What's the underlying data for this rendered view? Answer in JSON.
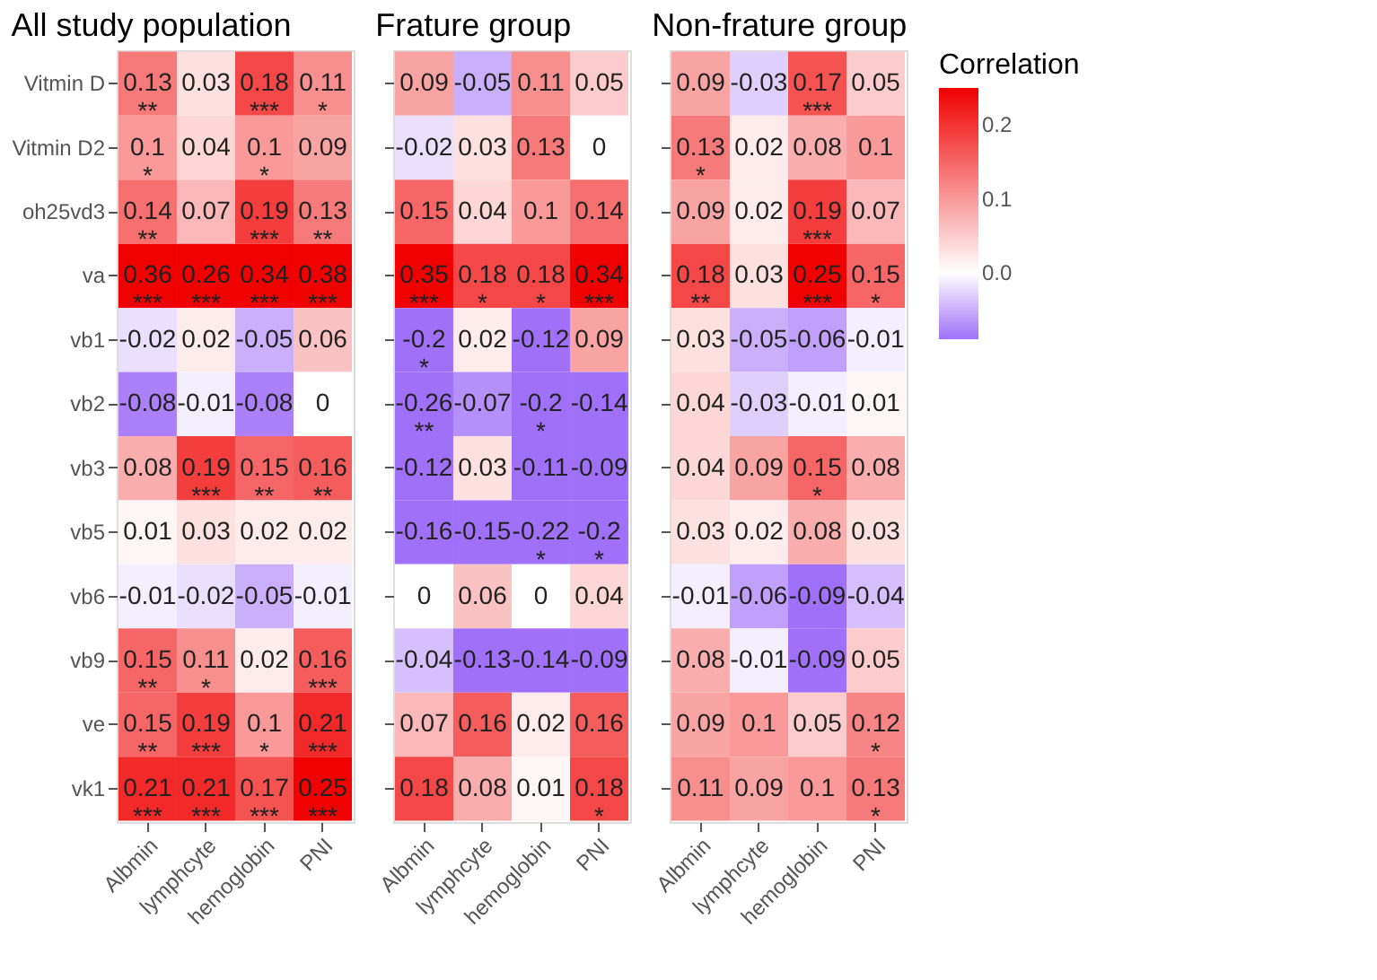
{
  "chart_data": [
    {
      "type": "heatmap",
      "title": "All study population",
      "categories": [
        "Albmin",
        "lymphcyte",
        "hemoglobin",
        "PNI"
      ],
      "y_categories": [
        "Vitmin D",
        "Vitmin D2",
        "oh25vd3",
        "va",
        "vb1",
        "vb2",
        "vb3",
        "vb5",
        "vb6",
        "vb9",
        "ve",
        "vk1"
      ],
      "cells": [
        [
          0.13,
          0.03,
          0.18,
          0.11
        ],
        [
          0.1,
          0.04,
          0.1,
          0.09
        ],
        [
          0.14,
          0.07,
          0.19,
          0.13
        ],
        [
          0.36,
          0.26,
          0.34,
          0.38
        ],
        [
          -0.02,
          0.02,
          -0.05,
          0.06
        ],
        [
          -0.08,
          -0.01,
          -0.08,
          0
        ],
        [
          0.08,
          0.19,
          0.15,
          0.16
        ],
        [
          0.01,
          0.03,
          0.02,
          0.02
        ],
        [
          -0.01,
          -0.02,
          -0.05,
          -0.01
        ],
        [
          0.15,
          0.11,
          0.02,
          0.16
        ],
        [
          0.15,
          0.19,
          0.1,
          0.21
        ],
        [
          0.21,
          0.21,
          0.17,
          0.25
        ]
      ],
      "cell_labels": [
        [
          "0.13\n**",
          "0.03",
          "0.18\n***",
          "0.11\n*"
        ],
        [
          "0.1\n*",
          "0.04",
          "0.1\n*",
          "0.09"
        ],
        [
          "0.14\n**",
          "0.07",
          "0.19\n***",
          "0.13\n**"
        ],
        [
          "0.36\n***",
          "0.26\n***",
          "0.34\n***",
          "0.38\n***"
        ],
        [
          "-0.02",
          "0.02",
          "-0.05",
          "0.06"
        ],
        [
          "-0.08",
          "-0.01",
          "-0.08",
          "0"
        ],
        [
          "0.08",
          "0.19\n***",
          "0.15\n**",
          "0.16\n**"
        ],
        [
          "0.01",
          "0.03",
          "0.02",
          "0.02"
        ],
        [
          "-0.01",
          "-0.02",
          "-0.05",
          "-0.01"
        ],
        [
          "0.15\n**",
          "0.11\n*",
          "0.02",
          "0.16\n***"
        ],
        [
          "0.15\n**",
          "0.19\n***",
          "0.1\n*",
          "0.21\n***"
        ],
        [
          "0.21\n***",
          "0.21\n***",
          "0.17\n***",
          "0.25\n***"
        ]
      ]
    },
    {
      "type": "heatmap",
      "title": "Frature group",
      "categories": [
        "Albmin",
        "lymphcyte",
        "hemoglobin",
        "PNI"
      ],
      "y_categories": [
        "Vitmin D",
        "Vitmin D2",
        "oh25vd3",
        "va",
        "vb1",
        "vb2",
        "vb3",
        "vb5",
        "vb6",
        "vb9",
        "ve",
        "vk1"
      ],
      "tick_labels": "x",
      "cells": [
        [
          0.09,
          -0.05,
          0.11,
          0.05
        ],
        [
          -0.02,
          0.03,
          0.13,
          0
        ],
        [
          0.15,
          0.04,
          0.1,
          0.14
        ],
        [
          0.35,
          0.18,
          0.18,
          0.34
        ],
        [
          -0.2,
          0.02,
          -0.12,
          0.09
        ],
        [
          -0.26,
          -0.07,
          -0.2,
          -0.14
        ],
        [
          -0.12,
          0.03,
          -0.11,
          -0.09
        ],
        [
          -0.16,
          -0.15,
          -0.22,
          -0.2
        ],
        [
          0,
          0.06,
          0,
          0.04
        ],
        [
          -0.04,
          -0.13,
          -0.14,
          -0.09
        ],
        [
          0.07,
          0.16,
          0.02,
          0.16
        ],
        [
          0.18,
          0.08,
          0.01,
          0.18
        ]
      ],
      "cell_labels": [
        [
          "0.09",
          "-0.05",
          "0.11",
          "0.05"
        ],
        [
          "-0.02",
          "0.03",
          "0.13",
          "0"
        ],
        [
          "0.15",
          "0.04",
          "0.1",
          "0.14"
        ],
        [
          "0.35\n***",
          "0.18\n*",
          "0.18\n*",
          "0.34\n***"
        ],
        [
          "-0.2\n*",
          "0.02",
          "-0.12",
          "0.09"
        ],
        [
          "-0.26\n**",
          "-0.07",
          "-0.2\n*",
          "-0.14"
        ],
        [
          "-0.12",
          "0.03",
          "-0.11",
          "-0.09"
        ],
        [
          "-0.16",
          "-0.15",
          "-0.22\n*",
          "-0.2\n*"
        ],
        [
          "0",
          "0.06",
          "0",
          "0.04"
        ],
        [
          "-0.04",
          "-0.13",
          "-0.14",
          "-0.09"
        ],
        [
          "0.07",
          "0.16",
          "0.02",
          "0.16"
        ],
        [
          "0.18",
          "0.08",
          "0.01",
          "0.18\n*"
        ]
      ]
    },
    {
      "type": "heatmap",
      "title": "Non-frature group",
      "categories": [
        "Albmin",
        "lymphcyte",
        "hemoglobin",
        "PNI"
      ],
      "y_categories": [
        "Vitmin D",
        "Vitmin D2",
        "oh25vd3",
        "va",
        "vb1",
        "vb2",
        "vb3",
        "vb5",
        "vb6",
        "vb9",
        "ve",
        "vk1"
      ],
      "tick_labels": "x",
      "cells": [
        [
          0.09,
          -0.03,
          0.17,
          0.05
        ],
        [
          0.13,
          0.02,
          0.08,
          0.1
        ],
        [
          0.09,
          0.02,
          0.19,
          0.07
        ],
        [
          0.18,
          0.03,
          0.25,
          0.15
        ],
        [
          0.03,
          -0.05,
          -0.06,
          -0.01
        ],
        [
          0.04,
          -0.03,
          -0.01,
          0.01
        ],
        [
          0.04,
          0.09,
          0.15,
          0.08
        ],
        [
          0.03,
          0.02,
          0.08,
          0.03
        ],
        [
          -0.01,
          -0.06,
          -0.09,
          -0.04
        ],
        [
          0.08,
          -0.01,
          -0.09,
          0.05
        ],
        [
          0.09,
          0.1,
          0.05,
          0.12
        ],
        [
          0.11,
          0.09,
          0.1,
          0.13
        ]
      ],
      "cell_labels": [
        [
          "0.09",
          "-0.03",
          "0.17\n***",
          "0.05"
        ],
        [
          "0.13\n*",
          "0.02",
          "0.08",
          "0.1"
        ],
        [
          "0.09",
          "0.02",
          "0.19\n***",
          "0.07"
        ],
        [
          "0.18\n**",
          "0.03",
          "0.25\n***",
          "0.15\n*"
        ],
        [
          "0.03",
          "-0.05",
          "-0.06",
          "-0.01"
        ],
        [
          "0.04",
          "-0.03",
          "-0.01",
          "0.01"
        ],
        [
          "0.04",
          "0.09",
          "0.15\n*",
          "0.08"
        ],
        [
          "0.03",
          "0.02",
          "0.08",
          "0.03"
        ],
        [
          "-0.01",
          "-0.06",
          "-0.09",
          "-0.04"
        ],
        [
          "0.08",
          "-0.01",
          "-0.09",
          "0.05"
        ],
        [
          "0.09",
          "0.1",
          "0.05",
          "0.12\n*"
        ],
        [
          "0.11",
          "0.09",
          "0.1",
          "0.13\n*"
        ]
      ],
      "clim": [
        -0.09,
        0.25
      ],
      "clabel": "Correlation",
      "cticks": [
        {
          "value": 0,
          "label": "0.0"
        },
        {
          "value": 0.1,
          "label": "0.1"
        },
        {
          "value": 0.2,
          "label": "0.2"
        }
      ]
    }
  ]
}
